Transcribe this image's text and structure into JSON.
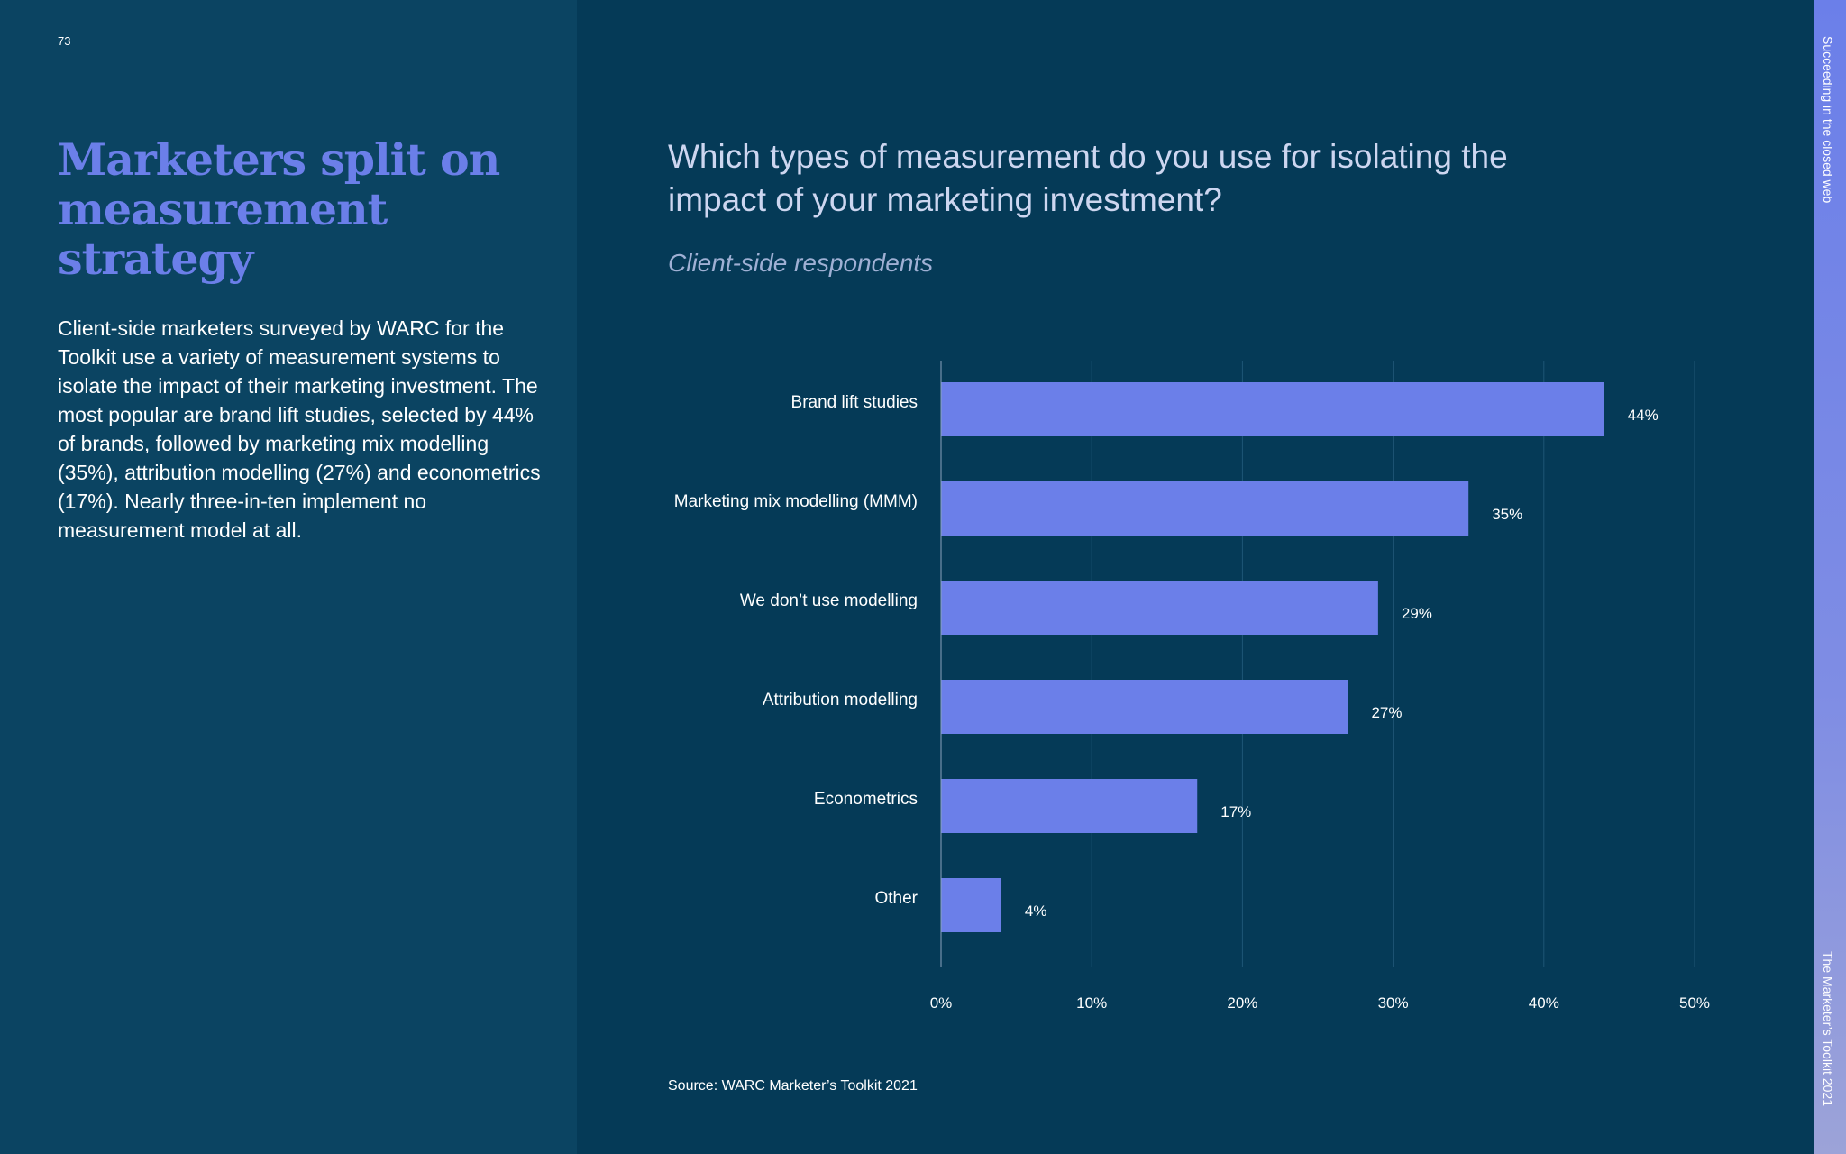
{
  "page": {
    "number": "73",
    "headline": "Marketers split on measurement strategy",
    "intro": "Client-side marketers surveyed by WARC for the Toolkit use a variety of measurement systems to isolate the impact of their marketing investment. The most popular are brand lift studies, selected by 44% of brands, followed by marketing mix modelling (35%), attribution modelling (27%) and econometrics (17%). Nearly three-in-ten implement no measurement model at all.",
    "source": "Source: WARC Marketer’s Toolkit 2021",
    "side_top": "Succeeding in the closed web",
    "side_bottom": "The Marketer’s Toolkit 2021"
  },
  "colors": {
    "bar": "#6b7fe9",
    "headline": "#6b7fe9",
    "background": "#053a57",
    "panel": "#0b4462"
  },
  "chart_data": {
    "type": "bar",
    "orientation": "horizontal",
    "title": "Which types of measurement do you use for isolating the impact of your marketing investment?",
    "subtitle": "Client-side respondents",
    "categories": [
      "Brand lift studies",
      "Marketing mix modelling (MMM)",
      "We don’t use modelling",
      "Attribution modelling",
      "Econometrics",
      "Other"
    ],
    "values": [
      44,
      35,
      29,
      27,
      17,
      4
    ],
    "value_labels": [
      "44%",
      "35%",
      "29%",
      "27%",
      "17%",
      "4%"
    ],
    "xlim": [
      0,
      50
    ],
    "x_ticks": [
      0,
      10,
      20,
      30,
      40,
      50
    ],
    "x_tick_labels": [
      "0%",
      "10%",
      "20%",
      "30%",
      "40%",
      "50%"
    ],
    "xlabel": "",
    "ylabel": "",
    "grid": true,
    "legend": "none"
  }
}
